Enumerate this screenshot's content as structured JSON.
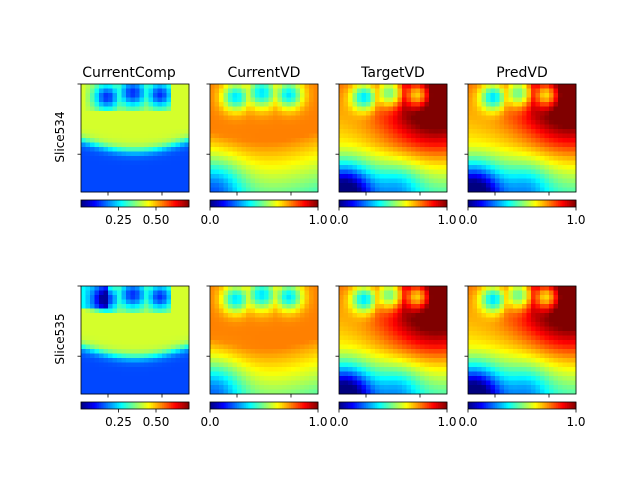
{
  "figure": {
    "columns": [
      "CurrentComp",
      "CurrentVD",
      "TargetVD",
      "PredVD"
    ],
    "rows": [
      "Slice534",
      "Slice535"
    ]
  },
  "chart_data": {
    "type": "heatmap",
    "colormap": "jet",
    "grid": false,
    "panels": [
      {
        "row": "Slice534",
        "title": "CurrentComp",
        "kind": "comp",
        "colorbar": {
          "range": [
            0.0,
            0.72
          ],
          "ticks": [
            0.25,
            0.5
          ],
          "tick_labels": [
            "0.25",
            "0.50"
          ]
        }
      },
      {
        "row": "Slice534",
        "title": "CurrentVD",
        "kind": "cvd",
        "colorbar": {
          "range": [
            0.0,
            1.0
          ],
          "ticks": [
            0.0,
            1.0
          ],
          "tick_labels": [
            "0.0",
            "1.0"
          ]
        }
      },
      {
        "row": "Slice534",
        "title": "TargetVD",
        "kind": "tvd",
        "colorbar": {
          "range": [
            0.0,
            1.0
          ],
          "ticks": [
            0.0,
            1.0
          ],
          "tick_labels": [
            "0.0",
            "1.0"
          ]
        }
      },
      {
        "row": "Slice534",
        "title": "PredVD",
        "kind": "pvd",
        "colorbar": {
          "range": [
            0.0,
            1.0
          ],
          "ticks": [
            0.0,
            1.0
          ],
          "tick_labels": [
            "0.0",
            "1.0"
          ]
        }
      },
      {
        "row": "Slice535",
        "title": "",
        "kind": "comp",
        "colorbar": {
          "range": [
            0.0,
            0.72
          ],
          "ticks": [
            0.25,
            0.5
          ],
          "tick_labels": [
            "0.25",
            "0.50"
          ]
        }
      },
      {
        "row": "Slice535",
        "title": "",
        "kind": "cvd",
        "colorbar": {
          "range": [
            0.0,
            1.0
          ],
          "ticks": [
            0.0,
            1.0
          ],
          "tick_labels": [
            "0.0",
            "1.0"
          ]
        }
      },
      {
        "row": "Slice535",
        "title": "",
        "kind": "tvd",
        "colorbar": {
          "range": [
            0.0,
            1.0
          ],
          "ticks": [
            0.0,
            1.0
          ],
          "tick_labels": [
            "0.0",
            "1.0"
          ]
        }
      },
      {
        "row": "Slice535",
        "title": "",
        "kind": "pvd",
        "colorbar": {
          "range": [
            0.0,
            1.0
          ],
          "ticks": [
            0.0,
            1.0
          ],
          "tick_labels": [
            "0.0",
            "1.0"
          ]
        }
      }
    ]
  }
}
